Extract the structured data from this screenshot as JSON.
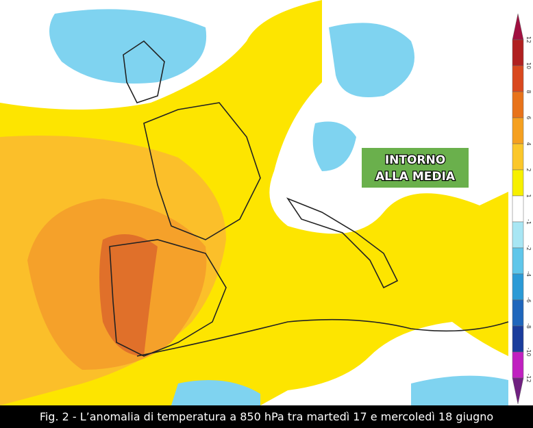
{
  "map": {
    "label_lines": [
      "INTORNO",
      "ALLA MEDIA"
    ]
  },
  "legend": {
    "ticks": [
      12,
      10,
      8,
      6,
      4,
      2,
      1,
      -1,
      -2,
      -4,
      -6,
      -8,
      -10,
      -12
    ]
  },
  "caption": "Fig. 2 - L’anomalia di temperatura a 850 hPa tra martedì 17 e mercoledì 18 giugno"
}
